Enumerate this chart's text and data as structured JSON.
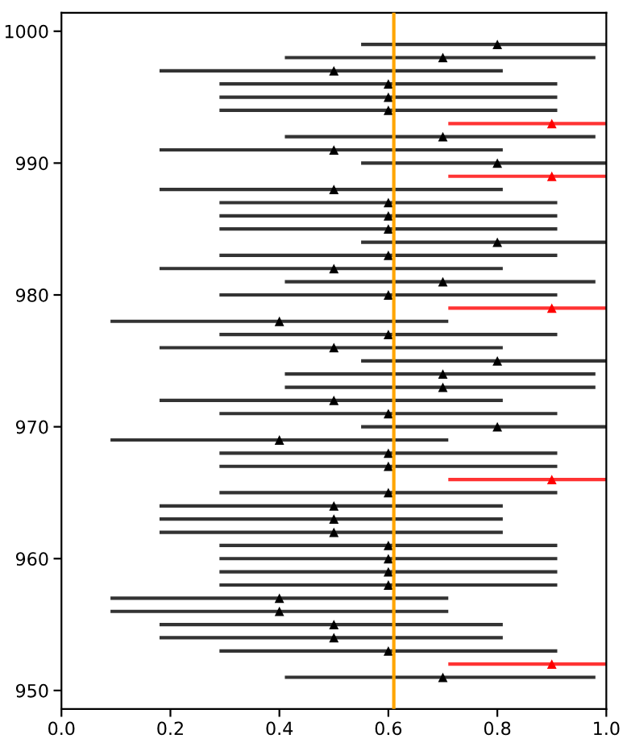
{
  "chart_data": {
    "type": "scatter",
    "marker": "triangle",
    "grid": false,
    "xlim": [
      0,
      1
    ],
    "xticks": [
      {
        "value": 0,
        "label": "0.0"
      },
      {
        "value": 0.2,
        "label": "0.2"
      },
      {
        "value": 0.4,
        "label": "0.4"
      },
      {
        "value": 0.6,
        "label": "0.6"
      },
      {
        "value": 0.8,
        "label": "0.8"
      },
      {
        "value": 1,
        "label": "1.0"
      }
    ],
    "ylim": [
      948.6,
      1001.4
    ],
    "yticks": [
      950,
      960,
      970,
      980,
      990,
      1000
    ],
    "ref_lines": [
      {
        "axis": "x",
        "value": 0.61,
        "color": "#ffa500"
      }
    ],
    "series": [
      {
        "color": "#000000",
        "x": [
          0.8,
          0.7,
          0.5,
          0.6,
          0.6,
          0.6,
          0.7,
          0.5,
          0.8,
          0.5,
          0.6,
          0.6,
          0.6,
          0.8,
          0.6,
          0.5,
          0.7,
          0.6,
          0.4,
          0.6,
          0.5,
          0.8,
          0.7,
          0.7,
          0.5,
          0.6,
          0.8,
          0.4,
          0.6,
          0.6,
          0.6,
          0.5,
          0.5,
          0.5,
          0.6,
          0.6,
          0.6,
          0.6,
          0.4,
          0.4,
          0.5,
          0.5,
          0.6,
          0.7
        ],
        "values": [
          999,
          998,
          997,
          996,
          995,
          994,
          992,
          991,
          990,
          988,
          987,
          986,
          985,
          984,
          983,
          982,
          981,
          980,
          978,
          977,
          976,
          975,
          974,
          973,
          972,
          971,
          970,
          969,
          968,
          967,
          965,
          964,
          963,
          962,
          961,
          960,
          959,
          958,
          957,
          956,
          955,
          954,
          953,
          951
        ],
        "xerrors": [
          [
            0.55,
            1.0
          ],
          [
            0.41,
            0.98
          ],
          [
            0.18,
            0.81
          ],
          [
            0.29,
            0.91
          ],
          [
            0.29,
            0.91
          ],
          [
            0.29,
            0.91
          ],
          [
            0.41,
            0.98
          ],
          [
            0.18,
            0.81
          ],
          [
            0.55,
            1.0
          ],
          [
            0.18,
            0.81
          ],
          [
            0.29,
            0.91
          ],
          [
            0.29,
            0.91
          ],
          [
            0.29,
            0.91
          ],
          [
            0.55,
            1.0
          ],
          [
            0.29,
            0.91
          ],
          [
            0.18,
            0.81
          ],
          [
            0.41,
            0.98
          ],
          [
            0.29,
            0.91
          ],
          [
            0.09,
            0.71
          ],
          [
            0.29,
            0.91
          ],
          [
            0.18,
            0.81
          ],
          [
            0.55,
            1.0
          ],
          [
            0.41,
            0.98
          ],
          [
            0.41,
            0.98
          ],
          [
            0.18,
            0.81
          ],
          [
            0.29,
            0.91
          ],
          [
            0.55,
            1.0
          ],
          [
            0.09,
            0.71
          ],
          [
            0.29,
            0.91
          ],
          [
            0.29,
            0.91
          ],
          [
            0.29,
            0.91
          ],
          [
            0.18,
            0.81
          ],
          [
            0.18,
            0.81
          ],
          [
            0.18,
            0.81
          ],
          [
            0.29,
            0.91
          ],
          [
            0.29,
            0.91
          ],
          [
            0.29,
            0.91
          ],
          [
            0.29,
            0.91
          ],
          [
            0.09,
            0.71
          ],
          [
            0.09,
            0.71
          ],
          [
            0.18,
            0.81
          ],
          [
            0.18,
            0.81
          ],
          [
            0.29,
            0.91
          ],
          [
            0.41,
            0.98
          ]
        ]
      },
      {
        "color": "#ff0000",
        "x": [
          0.9,
          0.9,
          0.9,
          0.9,
          0.9
        ],
        "values": [
          993,
          989,
          979,
          966,
          952
        ],
        "xerrors": [
          [
            0.71,
            1.0
          ],
          [
            0.71,
            1.0
          ],
          [
            0.71,
            1.0
          ],
          [
            0.71,
            1.0
          ],
          [
            0.71,
            1.0
          ]
        ]
      }
    ]
  }
}
